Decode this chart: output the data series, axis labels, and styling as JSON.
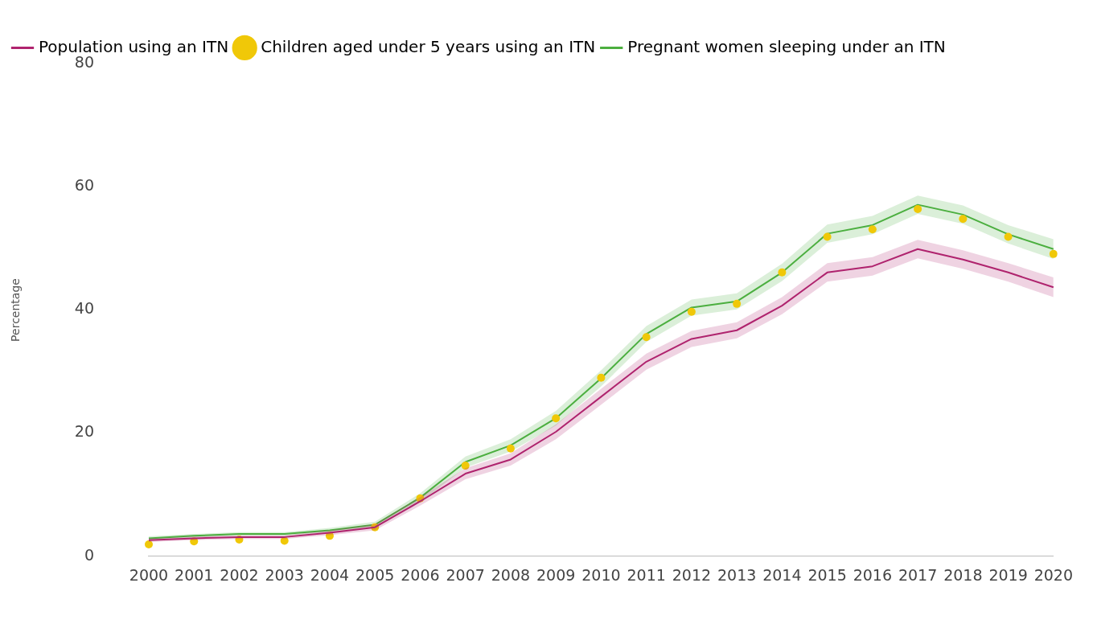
{
  "chart_data": {
    "type": "line",
    "ylabel": "Percentage",
    "categories": [
      "2000",
      "2001",
      "2002",
      "2003",
      "2004",
      "2005",
      "2006",
      "2007",
      "2008",
      "2009",
      "2010",
      "2011",
      "2012",
      "2013",
      "2014",
      "2015",
      "2016",
      "2017",
      "2018",
      "2019",
      "2020"
    ],
    "series": [
      {
        "name": "Population using an ITN",
        "color": "#b0246e",
        "values": [
          2.6,
          2.9,
          3.1,
          3.1,
          3.8,
          4.7,
          8.9,
          13.4,
          15.7,
          20.2,
          25.9,
          31.6,
          35.3,
          36.7,
          40.7,
          46.1,
          47.1,
          49.9,
          48.2,
          46.1,
          43.7
        ],
        "lower": [
          2.3,
          2.6,
          2.8,
          2.8,
          3.4,
          4.2,
          8.2,
          12.5,
          14.7,
          19.0,
          24.6,
          30.3,
          34.0,
          35.4,
          39.3,
          44.6,
          45.6,
          48.4,
          46.7,
          44.6,
          42.1
        ],
        "upper": [
          2.9,
          3.2,
          3.4,
          3.4,
          4.2,
          5.2,
          9.6,
          14.3,
          16.7,
          21.4,
          27.2,
          32.9,
          36.6,
          38.0,
          42.1,
          47.6,
          48.6,
          51.4,
          49.7,
          47.6,
          45.3
        ]
      },
      {
        "name": "Children aged under 5 years using an ITN",
        "type": "scatter",
        "marker": "circle",
        "color": "#f0c808",
        "values": [
          1.9,
          2.4,
          2.7,
          2.5,
          3.3,
          4.7,
          9.4,
          14.7,
          17.5,
          22.4,
          29.0,
          35.6,
          39.7,
          41.0,
          46.1,
          51.9,
          53.1,
          56.4,
          54.8,
          51.9,
          49.1
        ]
      },
      {
        "name": "Pregnant women sleeping under an ITN",
        "color": "#4caf3f",
        "values": [
          2.9,
          3.3,
          3.6,
          3.6,
          4.2,
          5.1,
          9.5,
          15.3,
          18.0,
          22.4,
          28.9,
          36.1,
          40.4,
          41.4,
          46.1,
          52.4,
          53.8,
          57.1,
          55.5,
          52.3,
          49.9
        ],
        "lower": [
          2.6,
          3.0,
          3.3,
          3.3,
          3.8,
          4.6,
          8.8,
          14.4,
          17.0,
          21.2,
          27.6,
          34.8,
          39.1,
          40.1,
          44.7,
          50.9,
          52.3,
          55.6,
          54.0,
          50.8,
          48.3
        ],
        "upper": [
          3.2,
          3.6,
          3.9,
          3.9,
          4.6,
          5.6,
          10.2,
          16.2,
          19.0,
          23.6,
          30.2,
          37.4,
          41.7,
          42.7,
          47.5,
          53.9,
          55.3,
          58.6,
          57.0,
          53.8,
          51.5
        ]
      }
    ],
    "ylim": [
      0,
      80
    ],
    "yticks": [
      0,
      20,
      40,
      60,
      80
    ],
    "grid": false,
    "legend": "top left",
    "line_style": "solid",
    "marker": "none"
  }
}
